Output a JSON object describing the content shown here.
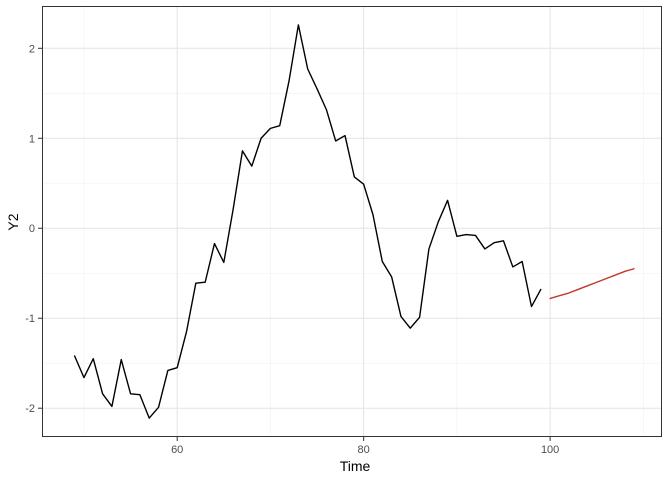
{
  "chart_data": {
    "type": "line",
    "title": "",
    "xlabel": "Time",
    "ylabel": "Y2",
    "xlim": [
      45.5,
      112.0
    ],
    "ylim": [
      -2.32,
      2.47
    ],
    "x_ticks": [
      {
        "value": 60,
        "label": "60"
      },
      {
        "value": 80,
        "label": "80"
      },
      {
        "value": 100,
        "label": "100"
      }
    ],
    "y_ticks": [
      {
        "value": -2,
        "label": "-2"
      },
      {
        "value": -1,
        "label": "-1"
      },
      {
        "value": 0,
        "label": "0"
      },
      {
        "value": 1,
        "label": "1"
      },
      {
        "value": 2,
        "label": "2"
      }
    ],
    "grid": true,
    "legend": "none",
    "series": [
      {
        "color": "#000000",
        "x": [
          49,
          50,
          51,
          52,
          53,
          54,
          55,
          56,
          57,
          58,
          59,
          60,
          61,
          62,
          63,
          64,
          65,
          66,
          67,
          68,
          69,
          70,
          71,
          72,
          73,
          74,
          75,
          76,
          77,
          78,
          79,
          80,
          81,
          82,
          83,
          84,
          85,
          86,
          87,
          88,
          89,
          90,
          91,
          92,
          93,
          94,
          95,
          96,
          97,
          98,
          99
        ],
        "y": [
          -1.42,
          -1.66,
          -1.45,
          -1.84,
          -1.98,
          -1.46,
          -1.84,
          -1.85,
          -2.11,
          -1.99,
          -1.58,
          -1.55,
          -1.15,
          -0.61,
          -0.6,
          -0.17,
          -0.38,
          0.21,
          0.86,
          0.69,
          1.0,
          1.11,
          1.14,
          1.64,
          2.26,
          1.77,
          1.55,
          1.32,
          0.97,
          1.03,
          0.57,
          0.49,
          0.15,
          -0.37,
          -0.54,
          -0.98,
          -1.11,
          -0.99,
          -0.23,
          0.07,
          0.31,
          -0.09,
          -0.07,
          -0.08,
          -0.23,
          -0.16,
          -0.14,
          -0.43,
          -0.37,
          -0.87,
          -0.68
        ]
      },
      {
        "color": "#c0392b",
        "x": [
          100,
          101,
          102,
          103,
          104,
          105,
          106,
          107,
          108,
          109
        ],
        "y": [
          -0.78,
          -0.75,
          -0.72,
          -0.68,
          -0.64,
          -0.6,
          -0.56,
          -0.52,
          -0.48,
          -0.45
        ]
      }
    ]
  }
}
